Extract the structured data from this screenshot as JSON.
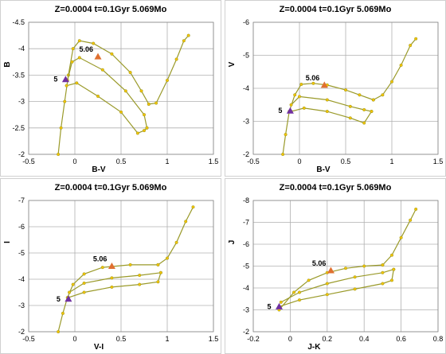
{
  "colors": {
    "line": "#9a9a2a",
    "point": "#f2c200",
    "grid": "#b0b0b0",
    "marker_low": "#7030a0",
    "marker_high": "#e07030"
  },
  "chart_data": [
    {
      "type": "line",
      "title": "Z=0.0004  t=0.1Gyr  5.069Mo",
      "xlabel": "B-V",
      "ylabel": "B",
      "xlim": [
        -0.5,
        1.5
      ],
      "ylim": [
        -2,
        -4.5
      ],
      "y_inverted": true,
      "xticks": [
        "-0.5",
        "0",
        "0.5",
        "1",
        "1.5"
      ],
      "yticks": [
        "-2",
        "-2.5",
        "-3",
        "-3.5",
        "-4",
        "-4.5"
      ],
      "grid": true,
      "series": [
        {
          "points": [
            [
              -0.18,
              -2
            ],
            [
              -0.15,
              -2.5
            ],
            [
              -0.11,
              -3
            ],
            [
              -0.07,
              -3.5
            ],
            [
              -0.02,
              -4
            ],
            [
              0.05,
              -4.15
            ],
            [
              0.2,
              -4.1
            ],
            [
              0.4,
              -3.9
            ],
            [
              0.6,
              -3.55
            ],
            [
              0.72,
              -3.2
            ],
            [
              0.8,
              -2.95
            ]
          ]
        },
        {
          "points": [
            [
              -0.08,
              -3.4
            ],
            [
              -0.03,
              -3.75
            ],
            [
              0.05,
              -3.83
            ],
            [
              0.3,
              -3.6
            ],
            [
              0.55,
              -3.2
            ],
            [
              0.75,
              -2.75
            ],
            [
              0.78,
              -2.5
            ]
          ]
        },
        {
          "points": [
            [
              -0.09,
              -3.3
            ],
            [
              0.02,
              -3.35
            ],
            [
              0.25,
              -3.1
            ],
            [
              0.5,
              -2.8
            ],
            [
              0.68,
              -2.4
            ],
            [
              0.75,
              -2.45
            ],
            [
              0.78,
              -2.5
            ]
          ]
        },
        {
          "points": [
            [
              0.8,
              -2.95
            ],
            [
              0.88,
              -2.97
            ],
            [
              1.0,
              -3.4
            ],
            [
              1.1,
              -3.8
            ],
            [
              1.18,
              -4.15
            ],
            [
              1.23,
              -4.25
            ]
          ]
        }
      ],
      "markers": [
        {
          "x": -0.1,
          "y": -3.42,
          "label": "5",
          "role": "low"
        },
        {
          "x": 0.25,
          "y": -3.85,
          "label": "5.06",
          "role": "high"
        }
      ]
    },
    {
      "type": "line",
      "title": "Z=0.0004  t=0.1Gyr  5.069Mo",
      "xlabel": "B-V",
      "ylabel": "V",
      "xlim": [
        -0.5,
        1.5
      ],
      "ylim": [
        -2,
        -6
      ],
      "y_inverted": true,
      "xticks": [
        "-0.5",
        "0",
        "0.5",
        "1",
        "1.5"
      ],
      "yticks": [
        "-2",
        "-3",
        "-4",
        "-5",
        "-6"
      ],
      "grid": true,
      "series": [
        {
          "points": [
            [
              -0.18,
              -2
            ],
            [
              -0.15,
              -2.6
            ],
            [
              -0.11,
              -3.3
            ],
            [
              -0.05,
              -3.8
            ],
            [
              0.02,
              -4.12
            ],
            [
              0.15,
              -4.15
            ],
            [
              0.3,
              -4.1
            ],
            [
              0.5,
              -3.95
            ],
            [
              0.65,
              -3.8
            ],
            [
              0.8,
              -3.65
            ]
          ]
        },
        {
          "points": [
            [
              -0.09,
              -3.5
            ],
            [
              0.0,
              -3.75
            ],
            [
              0.3,
              -3.65
            ],
            [
              0.55,
              -3.45
            ],
            [
              0.7,
              -3.35
            ],
            [
              0.78,
              -3.3
            ]
          ]
        },
        {
          "points": [
            [
              -0.09,
              -3.3
            ],
            [
              0.05,
              -3.4
            ],
            [
              0.3,
              -3.3
            ],
            [
              0.55,
              -3.1
            ],
            [
              0.7,
              -2.95
            ],
            [
              0.78,
              -3.3
            ]
          ]
        },
        {
          "points": [
            [
              0.8,
              -3.65
            ],
            [
              0.9,
              -3.8
            ],
            [
              1.0,
              -4.2
            ],
            [
              1.1,
              -4.7
            ],
            [
              1.2,
              -5.3
            ],
            [
              1.26,
              -5.5
            ]
          ]
        }
      ],
      "markers": [
        {
          "x": -0.1,
          "y": -3.32,
          "label": "5",
          "role": "low"
        },
        {
          "x": 0.27,
          "y": -4.1,
          "label": "5.06",
          "role": "high"
        }
      ]
    },
    {
      "type": "line",
      "title": "Z=0.0004  t=0.1Gyr  5.069Mo",
      "xlabel": "V-I",
      "ylabel": "I",
      "xlim": [
        -0.5,
        1.5
      ],
      "ylim": [
        -2,
        -7
      ],
      "y_inverted": true,
      "xticks": [
        "-0.5",
        "0",
        "0.5",
        "1",
        "1.5"
      ],
      "yticks": [
        "-2",
        "-3",
        "-4",
        "-5",
        "-6",
        "-7"
      ],
      "grid": true,
      "series": [
        {
          "points": [
            [
              -0.18,
              -2
            ],
            [
              -0.13,
              -2.7
            ],
            [
              -0.08,
              -3.3
            ],
            [
              -0.02,
              -3.8
            ],
            [
              0.1,
              -4.2
            ],
            [
              0.3,
              -4.45
            ],
            [
              0.6,
              -4.55
            ],
            [
              0.9,
              -4.55
            ]
          ]
        },
        {
          "points": [
            [
              -0.06,
              -3.5
            ],
            [
              0.1,
              -3.85
            ],
            [
              0.4,
              -4.05
            ],
            [
              0.7,
              -4.15
            ],
            [
              0.93,
              -4.25
            ]
          ]
        },
        {
          "points": [
            [
              -0.07,
              -3.3
            ],
            [
              0.1,
              -3.5
            ],
            [
              0.4,
              -3.7
            ],
            [
              0.7,
              -3.8
            ],
            [
              0.9,
              -3.9
            ],
            [
              0.93,
              -4.25
            ]
          ]
        },
        {
          "points": [
            [
              0.9,
              -4.55
            ],
            [
              1.0,
              -4.8
            ],
            [
              1.1,
              -5.4
            ],
            [
              1.2,
              -6.2
            ],
            [
              1.28,
              -6.75
            ]
          ]
        }
      ],
      "markers": [
        {
          "x": -0.07,
          "y": -3.25,
          "label": "5",
          "role": "low"
        },
        {
          "x": 0.4,
          "y": -4.5,
          "label": "5.06",
          "role": "high"
        }
      ]
    },
    {
      "type": "line",
      "title": "Z=0.0004  t=0.1Gyr  5.069Mo",
      "xlabel": "J-K",
      "ylabel": "J",
      "xlim": [
        -0.2,
        0.8
      ],
      "ylim": [
        -2,
        -8
      ],
      "y_inverted": true,
      "xticks": [
        "-0.2",
        "0",
        "0.2",
        "0.4",
        "0.6",
        "0.8"
      ],
      "yticks": [
        "-2",
        "-3",
        "-4",
        "-5",
        "-6",
        "-7",
        "-8"
      ],
      "grid": true,
      "series": [
        {
          "points": [
            [
              -0.06,
              -3.0
            ],
            [
              0.02,
              -3.8
            ],
            [
              0.1,
              -4.35
            ],
            [
              0.2,
              -4.7
            ],
            [
              0.3,
              -4.9
            ],
            [
              0.4,
              -5.0
            ],
            [
              0.5,
              -5.05
            ]
          ]
        },
        {
          "points": [
            [
              -0.05,
              -3.35
            ],
            [
              0.05,
              -3.8
            ],
            [
              0.2,
              -4.2
            ],
            [
              0.35,
              -4.5
            ],
            [
              0.5,
              -4.7
            ],
            [
              0.56,
              -4.85
            ]
          ]
        },
        {
          "points": [
            [
              -0.06,
              -3.15
            ],
            [
              0.05,
              -3.45
            ],
            [
              0.2,
              -3.7
            ],
            [
              0.35,
              -3.95
            ],
            [
              0.5,
              -4.2
            ],
            [
              0.55,
              -4.35
            ],
            [
              0.56,
              -4.85
            ]
          ]
        },
        {
          "points": [
            [
              0.5,
              -5.05
            ],
            [
              0.55,
              -5.5
            ],
            [
              0.6,
              -6.3
            ],
            [
              0.65,
              -7.1
            ],
            [
              0.68,
              -7.6
            ]
          ]
        }
      ],
      "markers": [
        {
          "x": -0.06,
          "y": -3.15,
          "label": "5",
          "role": "low"
        },
        {
          "x": 0.22,
          "y": -4.8,
          "label": "5.06",
          "role": "high"
        }
      ]
    }
  ]
}
